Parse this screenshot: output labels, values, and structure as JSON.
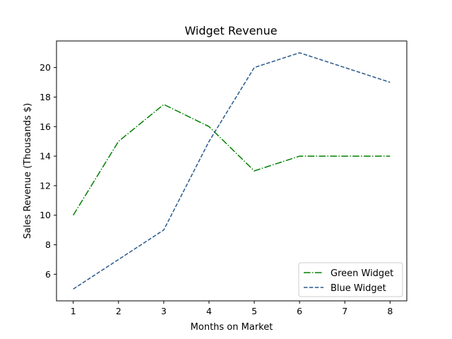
{
  "chart_data": {
    "type": "line",
    "title": "Widget Revenue",
    "xlabel": "Months on Market",
    "ylabel": "Sales Revenue (Thousands $)",
    "x": [
      1,
      2,
      3,
      4,
      5,
      6,
      7,
      8
    ],
    "xticks": [
      1,
      2,
      3,
      4,
      5,
      6,
      7,
      8
    ],
    "yticks": [
      6,
      8,
      10,
      12,
      14,
      16,
      18,
      20
    ],
    "xlim": [
      0.63,
      8.37
    ],
    "ylim": [
      4.2,
      21.8
    ],
    "grid": false,
    "legend_position": "lower-right",
    "series": [
      {
        "name": "Green Widget",
        "values": [
          10,
          15,
          17.5,
          16,
          13,
          14,
          14,
          14
        ],
        "color": "#008000",
        "line_style": "dash-dot"
      },
      {
        "name": "Blue Widget",
        "values": [
          5,
          7,
          9,
          15,
          20,
          21,
          20,
          19
        ],
        "color": "#2a5a8a",
        "line_style": "dashed"
      }
    ]
  }
}
